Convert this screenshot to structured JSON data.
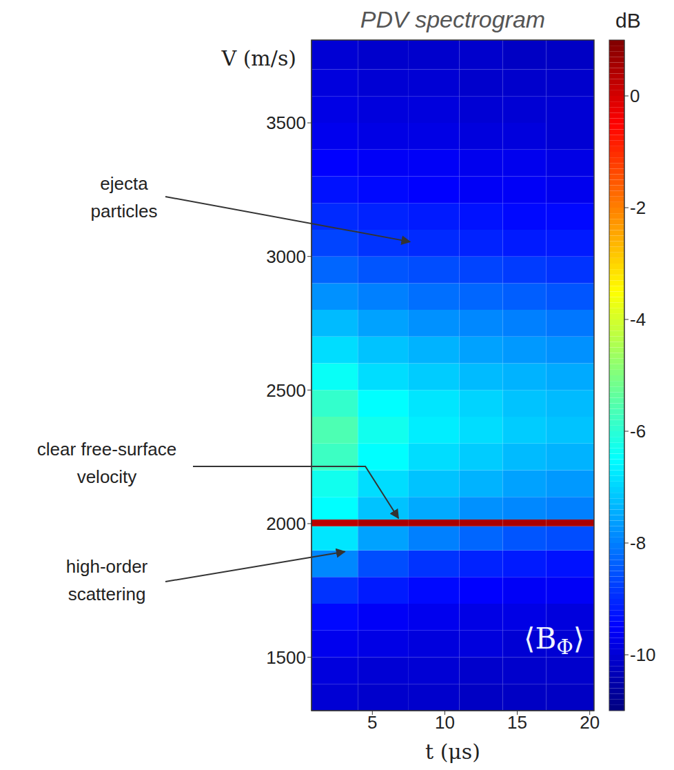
{
  "chart_data": {
    "type": "heatmap",
    "title": "PDV spectrogram",
    "x_label": "t (μs)",
    "y_label": "V (m/s)",
    "xlim": [
      0.8,
      20.3
    ],
    "xticks": [
      5,
      10,
      15,
      20
    ],
    "ylim": [
      1300,
      3810
    ],
    "yticks": [
      1500,
      2000,
      2500,
      3000,
      3500
    ],
    "grid": false,
    "heatmap": {
      "t_bins": [
        0.8,
        4,
        7.5,
        11,
        14,
        17,
        20.3
      ],
      "v_bins": [
        1300,
        1400,
        1500,
        1600,
        1700,
        1800,
        1900,
        1990,
        2015,
        2100,
        2200,
        2300,
        2400,
        2500,
        2600,
        2700,
        2800,
        2900,
        3000,
        3100,
        3200,
        3300,
        3400,
        3500,
        3600,
        3700,
        3810
      ],
      "cells": [
        [
          -10.0,
          -10.1,
          -10.1,
          -10.2,
          -10.2,
          -10.2
        ],
        [
          -9.9,
          -10.0,
          -10.0,
          -10.1,
          -10.1,
          -10.1
        ],
        [
          -9.7,
          -9.8,
          -9.9,
          -9.9,
          -10.0,
          -10.0
        ],
        [
          -9.4,
          -9.6,
          -9.7,
          -9.8,
          -9.8,
          -9.9
        ],
        [
          -8.9,
          -9.2,
          -9.4,
          -9.5,
          -9.6,
          -9.6
        ],
        [
          -7.9,
          -8.6,
          -8.9,
          -9.1,
          -9.2,
          -9.3
        ],
        [
          -6.8,
          -7.6,
          -8.0,
          -8.3,
          -8.5,
          -8.6
        ],
        [
          0.3,
          0.5,
          0.5,
          0.5,
          0.5,
          0.5
        ],
        [
          -6.5,
          -7.2,
          -7.5,
          -7.8,
          -7.9,
          -8.0
        ],
        [
          -6.3,
          -6.9,
          -7.2,
          -7.4,
          -7.6,
          -7.7
        ],
        [
          -5.8,
          -6.5,
          -6.9,
          -7.1,
          -7.3,
          -7.4
        ],
        [
          -5.6,
          -6.3,
          -6.7,
          -6.9,
          -7.1,
          -7.2
        ],
        [
          -5.9,
          -6.5,
          -6.8,
          -7.0,
          -7.2,
          -7.3
        ],
        [
          -6.4,
          -6.9,
          -7.1,
          -7.3,
          -7.4,
          -7.5
        ],
        [
          -6.9,
          -7.2,
          -7.4,
          -7.6,
          -7.7,
          -7.8
        ],
        [
          -7.3,
          -7.6,
          -7.8,
          -7.9,
          -8.0,
          -8.1
        ],
        [
          -7.8,
          -8.0,
          -8.2,
          -8.3,
          -8.4,
          -8.5
        ],
        [
          -8.3,
          -8.5,
          -8.6,
          -8.7,
          -8.8,
          -8.9
        ],
        [
          -8.7,
          -8.9,
          -9.0,
          -9.1,
          -9.2,
          -9.2
        ],
        [
          -9.0,
          -9.1,
          -9.2,
          -9.3,
          -9.4,
          -9.4
        ],
        [
          -9.3,
          -9.4,
          -9.5,
          -9.6,
          -9.6,
          -9.7
        ],
        [
          -9.5,
          -9.6,
          -9.6,
          -9.7,
          -9.7,
          -9.8
        ],
        [
          -9.7,
          -9.8,
          -9.8,
          -9.9,
          -9.9,
          -10.0
        ],
        [
          -9.8,
          -9.9,
          -9.9,
          -10.0,
          -10.0,
          -10.0
        ],
        [
          -9.9,
          -10.0,
          -10.0,
          -10.1,
          -10.1,
          -10.1
        ],
        [
          -10.0,
          -10.1,
          -10.1,
          -10.1,
          -10.2,
          -10.2
        ]
      ]
    },
    "colorbar": {
      "title": "dB",
      "range": [
        -11,
        1
      ],
      "ticks": [
        0,
        -2,
        -4,
        -6,
        -8,
        -10
      ]
    },
    "annotations": [
      {
        "text": "ejecta particles",
        "point": [
          7.6,
          3055
        ]
      },
      {
        "text": "clear free-surface velocity",
        "point": [
          6.8,
          2020
        ]
      },
      {
        "text": "high-order scattering",
        "point": [
          3.1,
          1895
        ]
      }
    ],
    "inset_label": "⟨BΦ⟩"
  }
}
